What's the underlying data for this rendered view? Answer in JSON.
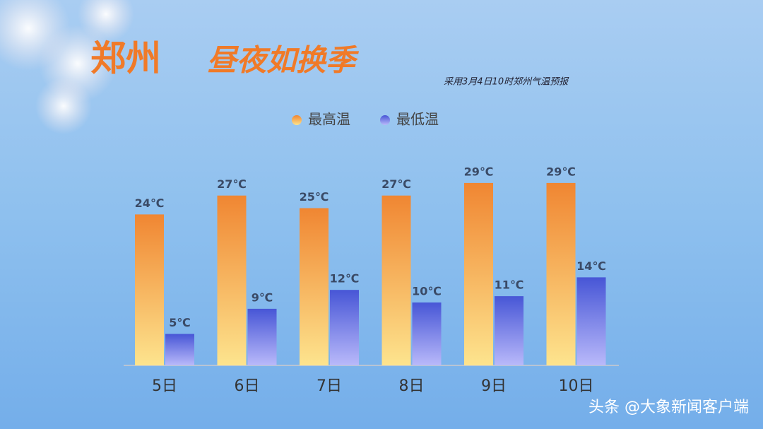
{
  "title": "郑州",
  "subtitle": "昼夜如换季",
  "note": "采用3月4日10时郑州气温预报",
  "watermark": "头条 @大象新闻客户端",
  "chart_data": {
    "type": "bar",
    "categories": [
      "5日",
      "6日",
      "7日",
      "8日",
      "9日",
      "10日"
    ],
    "series": [
      {
        "name": "最高温",
        "color": "#f08632",
        "gradient": [
          "#f08632",
          "#fde48e"
        ],
        "values": [
          24,
          27,
          25,
          27,
          29,
          29
        ],
        "value_labels": [
          "24℃",
          "27℃",
          "25℃",
          "27℃",
          "29℃",
          "29℃"
        ]
      },
      {
        "name": "最低温",
        "color": "#4756d6",
        "gradient": [
          "#4756d6",
          "#b9b9fa"
        ],
        "values": [
          5,
          9,
          12,
          10,
          11,
          14
        ],
        "value_labels": [
          "5℃",
          "9℃",
          "12℃",
          "10℃",
          "11℃",
          "14℃"
        ]
      }
    ],
    "ylim": [
      0,
      30
    ]
  }
}
